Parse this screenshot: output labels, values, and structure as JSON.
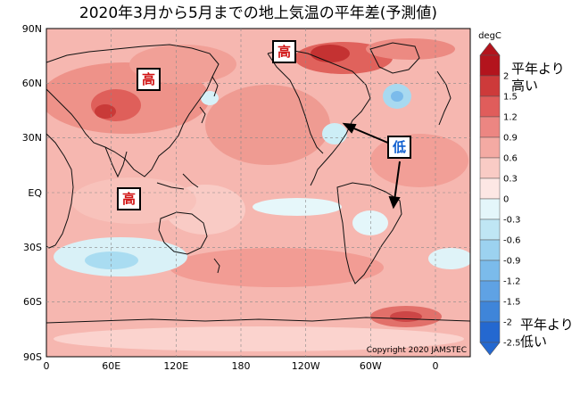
{
  "title": "2020年3月から5月までの地上気温の平年差(予測値)",
  "copyright": "Copyright 2020 JAMSTEC",
  "y_axis_ticks": [
    "90N",
    "60N",
    "30N",
    "EQ",
    "30S",
    "60S",
    "90S"
  ],
  "x_axis_ticks": [
    "0",
    "60E",
    "120E",
    "180",
    "120W",
    "60W",
    "0"
  ],
  "colorbar": {
    "unit": "degC",
    "levels": [
      "2",
      "1.5",
      "1.2",
      "0.9",
      "0.6",
      "0.3",
      "0",
      "-0.3",
      "-0.6",
      "-0.9",
      "-1.2",
      "-1.5",
      "-2",
      "-2.5"
    ],
    "colors": [
      "#b3141d",
      "#cd3a3a",
      "#e05d5b",
      "#ec8682",
      "#f4aaa3",
      "#f9cbc5",
      "#fde7e4",
      "#e4f6fa",
      "#bfe6f4",
      "#9cd2f0",
      "#7bbbeb",
      "#5fa2e4",
      "#3f85d9",
      "#2468d0"
    ],
    "high_note": [
      "平年より",
      "高い"
    ],
    "low_note": [
      "平年より",
      "低い"
    ]
  },
  "labels": {
    "high": "高",
    "low": "低"
  }
}
